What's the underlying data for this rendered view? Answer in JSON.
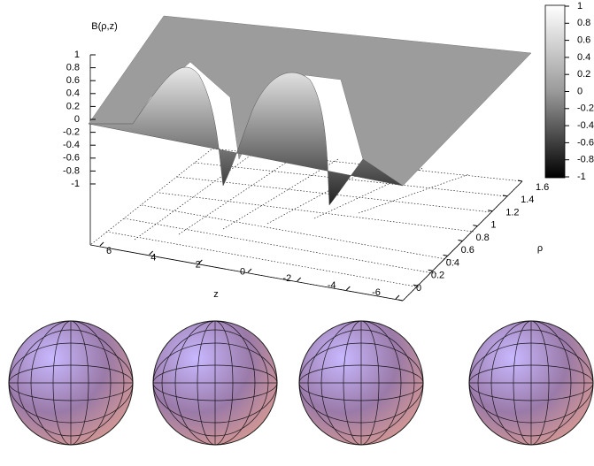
{
  "chart_data": {
    "type": "surface3d",
    "zlabel": "B(ρ,z)",
    "xlabel": "z",
    "ylabel": "ρ",
    "xlim": [
      -6,
      6
    ],
    "xticks": [
      6,
      4,
      2,
      0,
      -2,
      -4,
      -6
    ],
    "ylim": [
      0,
      1.6
    ],
    "yticks": [
      0,
      0.2,
      0.4,
      0.6,
      0.8,
      1,
      1.2,
      1.4,
      1.6
    ],
    "zlim": [
      -1,
      1
    ],
    "zticks": [
      1,
      0.8,
      0.6,
      0.4,
      0.2,
      0,
      -0.2,
      -0.4,
      -0.6,
      -0.8,
      -1
    ],
    "cblim": [
      -1,
      1
    ],
    "cbticks": [
      1,
      0.8,
      0.6,
      0.4,
      0.2,
      0,
      -0.2,
      -0.4,
      -0.6,
      -0.8,
      -1
    ]
  }
}
